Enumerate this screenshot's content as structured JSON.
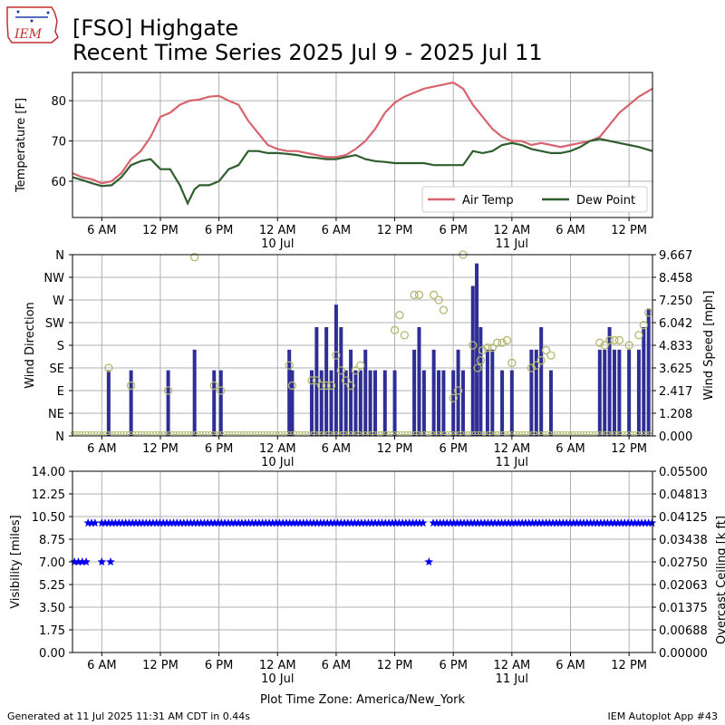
{
  "header": {
    "logo_text": "IEM",
    "title_line1": "[FSO] Highgate",
    "title_line2": "Recent Time Series 2025 Jul 9 - 2025 Jul 11"
  },
  "footer": {
    "generated": "Generated at 11 Jul 2025 11:31 AM CDT in 0.44s",
    "app": "IEM Autoplot App #43",
    "timezone": "Plot Time Zone: America/New_York"
  },
  "colors": {
    "air_temp": "#d9636e",
    "dew_point": "#2e5e2e",
    "wind_bar": "#2e2e96",
    "wind_dir": "#b3b86e",
    "visibility": "#0000ee",
    "ceiling_label": "#008000"
  },
  "x_axis": {
    "range_hours": [
      0,
      59.4
    ],
    "ticks": [
      {
        "h": 3,
        "label": "6 AM",
        "sub": ""
      },
      {
        "h": 9,
        "label": "12 PM",
        "sub": ""
      },
      {
        "h": 15,
        "label": "6 PM",
        "sub": ""
      },
      {
        "h": 21,
        "label": "12 AM",
        "sub": "10 Jul"
      },
      {
        "h": 27,
        "label": "6 AM",
        "sub": ""
      },
      {
        "h": 33,
        "label": "12 PM",
        "sub": ""
      },
      {
        "h": 39,
        "label": "6 PM",
        "sub": ""
      },
      {
        "h": 45,
        "label": "12 AM",
        "sub": "11 Jul"
      },
      {
        "h": 51,
        "label": "6 AM",
        "sub": ""
      },
      {
        "h": 57,
        "label": "12 PM",
        "sub": ""
      }
    ]
  },
  "chart_data": [
    {
      "type": "line",
      "ylabel": "Temperature [F]",
      "ylim": [
        51,
        87
      ],
      "yticks": [
        60,
        70,
        80
      ],
      "grid": true,
      "legend": "lower-right",
      "series": [
        {
          "name": "Air Temp",
          "color": "#d9636e",
          "points": [
            [
              0,
              62
            ],
            [
              1,
              61
            ],
            [
              2,
              60.5
            ],
            [
              3,
              59.5
            ],
            [
              4,
              60
            ],
            [
              5,
              62
            ],
            [
              6,
              65.5
            ],
            [
              7,
              67.5
            ],
            [
              8,
              71
            ],
            [
              9,
              76
            ],
            [
              10,
              77
            ],
            [
              11,
              79
            ],
            [
              12,
              80
            ],
            [
              13,
              80.3
            ],
            [
              14,
              81
            ],
            [
              15,
              81.2
            ],
            [
              16,
              80
            ],
            [
              17,
              79
            ],
            [
              18,
              75
            ],
            [
              19,
              72
            ],
            [
              20,
              69
            ],
            [
              21,
              68
            ],
            [
              22,
              67.5
            ],
            [
              23,
              67.5
            ],
            [
              24,
              67
            ],
            [
              25,
              66.5
            ],
            [
              26,
              66
            ],
            [
              27,
              66
            ],
            [
              28,
              66.5
            ],
            [
              29,
              68
            ],
            [
              30,
              70
            ],
            [
              31,
              73
            ],
            [
              32,
              77
            ],
            [
              33,
              79.5
            ],
            [
              34,
              81
            ],
            [
              35,
              82
            ],
            [
              36,
              83
            ],
            [
              37,
              83.5
            ],
            [
              38,
              84
            ],
            [
              39,
              84.5
            ],
            [
              40,
              83
            ],
            [
              41,
              79
            ],
            [
              42,
              76
            ],
            [
              43,
              73
            ],
            [
              44,
              71
            ],
            [
              45,
              70
            ],
            [
              46,
              70
            ],
            [
              47,
              69
            ],
            [
              48,
              69.5
            ],
            [
              49,
              69
            ],
            [
              50,
              68.5
            ],
            [
              51,
              69
            ],
            [
              52,
              69.5
            ],
            [
              53,
              70
            ],
            [
              54,
              71
            ],
            [
              55,
              74
            ],
            [
              56,
              77
            ],
            [
              57,
              79
            ],
            [
              58,
              81
            ],
            [
              59.4,
              83
            ]
          ]
        },
        {
          "name": "Dew Point",
          "color": "#2e5e2e",
          "points": [
            [
              0,
              61
            ],
            [
              1,
              60.3
            ],
            [
              2,
              59.5
            ],
            [
              3,
              58.8
            ],
            [
              4,
              59
            ],
            [
              5,
              61
            ],
            [
              6,
              64
            ],
            [
              7,
              65
            ],
            [
              8,
              65.5
            ],
            [
              9,
              63
            ],
            [
              10,
              63
            ],
            [
              11,
              59
            ],
            [
              11.8,
              54.5
            ],
            [
              12.5,
              58
            ],
            [
              13,
              59
            ],
            [
              14,
              59
            ],
            [
              15,
              60
            ],
            [
              16,
              63
            ],
            [
              17,
              64
            ],
            [
              18,
              67.5
            ],
            [
              19,
              67.5
            ],
            [
              20,
              67
            ],
            [
              21,
              67
            ],
            [
              22,
              66.8
            ],
            [
              23,
              66.5
            ],
            [
              24,
              66
            ],
            [
              25,
              65.8
            ],
            [
              26,
              65.5
            ],
            [
              27,
              65.5
            ],
            [
              28,
              66
            ],
            [
              29,
              66.5
            ],
            [
              30,
              65.5
            ],
            [
              31,
              65
            ],
            [
              32,
              64.8
            ],
            [
              33,
              64.5
            ],
            [
              34,
              64.5
            ],
            [
              35,
              64.5
            ],
            [
              36,
              64.5
            ],
            [
              37,
              64
            ],
            [
              38,
              64
            ],
            [
              39,
              64
            ],
            [
              40,
              64
            ],
            [
              41,
              67.5
            ],
            [
              42,
              67
            ],
            [
              43,
              67.5
            ],
            [
              44,
              69
            ],
            [
              45,
              69.5
            ],
            [
              46,
              69
            ],
            [
              47,
              68
            ],
            [
              48,
              67.5
            ],
            [
              49,
              67
            ],
            [
              50,
              67
            ],
            [
              51,
              67.5
            ],
            [
              52,
              68.5
            ],
            [
              53,
              70
            ],
            [
              54,
              70.5
            ],
            [
              55,
              70
            ],
            [
              56,
              69.5
            ],
            [
              57,
              69
            ],
            [
              58,
              68.5
            ],
            [
              59.4,
              67.5
            ]
          ]
        }
      ]
    },
    {
      "type": "bar",
      "ylabel": "Wind Direction",
      "ylabel_right": "Wind Speed [mph]",
      "y_left_labels": [
        "N",
        "NE",
        "E",
        "SE",
        "S",
        "SW",
        "W",
        "NW",
        "N"
      ],
      "y_right_labels": [
        "0.000",
        "1.208",
        "2.417",
        "3.625",
        "4.833",
        "6.042",
        "7.250",
        "8.458",
        "9.667"
      ],
      "ylim_speed": [
        0,
        9.667
      ],
      "grid": true,
      "wind_speed_bars": [
        [
          3.7,
          3.5
        ],
        [
          6,
          3.5
        ],
        [
          9.8,
          3.5
        ],
        [
          12.5,
          4.6
        ],
        [
          14.5,
          3.5
        ],
        [
          15.2,
          3.5
        ],
        [
          22.2,
          4.6
        ],
        [
          22.5,
          3.5
        ],
        [
          24.5,
          3.5
        ],
        [
          25,
          5.8
        ],
        [
          25.5,
          3.5
        ],
        [
          26,
          5.8
        ],
        [
          26.5,
          3.5
        ],
        [
          27,
          7
        ],
        [
          27.5,
          5.8
        ],
        [
          28,
          3.5
        ],
        [
          28.5,
          4.6
        ],
        [
          29,
          3.5
        ],
        [
          29.5,
          3.5
        ],
        [
          30,
          4.6
        ],
        [
          30.5,
          3.5
        ],
        [
          31,
          3.5
        ],
        [
          32,
          3.5
        ],
        [
          33,
          3.5
        ],
        [
          35,
          4.6
        ],
        [
          35.5,
          5.8
        ],
        [
          36,
          3.5
        ],
        [
          37,
          4.6
        ],
        [
          37.5,
          3.5
        ],
        [
          38,
          3.5
        ],
        [
          39,
          3.5
        ],
        [
          39.5,
          4.6
        ],
        [
          40,
          3.5
        ],
        [
          41,
          8
        ],
        [
          41.4,
          9.2
        ],
        [
          41.8,
          5.8
        ],
        [
          42.5,
          4.6
        ],
        [
          43,
          4.6
        ],
        [
          44,
          3.5
        ],
        [
          45,
          3.5
        ],
        [
          47,
          4.6
        ],
        [
          47.5,
          4.6
        ],
        [
          48,
          5.8
        ],
        [
          49,
          3.5
        ],
        [
          54,
          4.6
        ],
        [
          54.5,
          4.6
        ],
        [
          55,
          5.8
        ],
        [
          55.5,
          4.6
        ],
        [
          56,
          4.6
        ],
        [
          57,
          4.6
        ],
        [
          58,
          4.6
        ],
        [
          58.5,
          5.8
        ],
        [
          59,
          6.8
        ]
      ],
      "wind_direction_points_deg": [
        [
          3.7,
          135
        ],
        [
          6,
          100
        ],
        [
          9.8,
          90
        ],
        [
          12.5,
          355
        ],
        [
          14.5,
          100
        ],
        [
          15.2,
          90
        ],
        [
          22.2,
          140
        ],
        [
          22.5,
          100
        ],
        [
          24.5,
          110
        ],
        [
          25,
          110
        ],
        [
          25.5,
          100
        ],
        [
          26,
          100
        ],
        [
          26.5,
          100
        ],
        [
          27,
          160
        ],
        [
          27.5,
          130
        ],
        [
          28,
          110
        ],
        [
          28.5,
          100
        ],
        [
          29,
          130
        ],
        [
          29.5,
          140
        ],
        [
          33,
          210
        ],
        [
          33.5,
          240
        ],
        [
          34,
          200
        ],
        [
          35,
          280
        ],
        [
          35.5,
          280
        ],
        [
          37,
          280
        ],
        [
          37.5,
          270
        ],
        [
          38,
          250
        ],
        [
          39,
          75
        ],
        [
          39.5,
          90
        ],
        [
          40,
          360
        ],
        [
          41,
          180
        ],
        [
          41.5,
          135
        ],
        [
          41.8,
          150
        ],
        [
          42,
          170
        ],
        [
          42.5,
          175
        ],
        [
          43,
          175
        ],
        [
          43.5,
          185
        ],
        [
          44,
          185
        ],
        [
          44.5,
          190
        ],
        [
          45,
          145
        ],
        [
          47,
          135
        ],
        [
          47.5,
          140
        ],
        [
          48,
          150
        ],
        [
          48.5,
          170
        ],
        [
          49,
          160
        ],
        [
          54,
          185
        ],
        [
          54.5,
          180
        ],
        [
          55,
          190
        ],
        [
          55.5,
          190
        ],
        [
          56,
          190
        ],
        [
          57,
          180
        ],
        [
          58,
          200
        ],
        [
          58.5,
          220
        ],
        [
          59,
          245
        ]
      ],
      "calm_band": true
    },
    {
      "type": "scatter",
      "ylabel": "Visibility [miles]",
      "ylabel_right": "Overcast Ceiling [k ft]",
      "y_left_labels": [
        "0.00",
        "1.75",
        "3.50",
        "5.25",
        "7.00",
        "8.75",
        "10.50",
        "12.25",
        "14.00"
      ],
      "y_right_labels": [
        "0.00000",
        "0.00688",
        "0.01375",
        "0.02063",
        "0.02750",
        "0.03438",
        "0.04125",
        "0.04813",
        "0.05500"
      ],
      "ylim": [
        0,
        14
      ],
      "grid": true,
      "visibility_low": [
        [
          0.2,
          7
        ],
        [
          0.6,
          7
        ],
        [
          1,
          7
        ],
        [
          1.4,
          7
        ],
        [
          3,
          7
        ],
        [
          3.9,
          7
        ],
        [
          36.5,
          7
        ]
      ],
      "visibility_high_start": 1.6,
      "visibility_high_end": 59.4,
      "visibility_high_value": 10,
      "visibility_high_gaps": [
        [
          2.4,
          2.8
        ],
        [
          36.2,
          36.8
        ]
      ]
    }
  ]
}
